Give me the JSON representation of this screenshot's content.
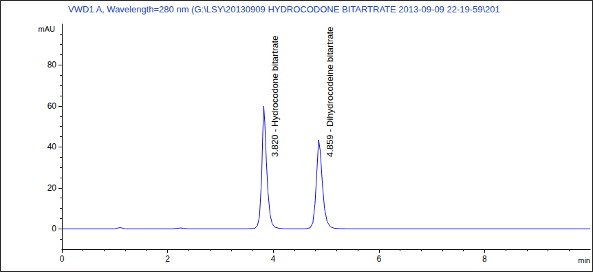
{
  "chart_data": {
    "type": "line",
    "title": "VWD1 A, Wavelength=280 nm (G:\\LSY\\20130909 HYDROCODONE BITARTRATE 2013-09-09 22-19-59\\201",
    "y_label": "mAU",
    "x_label": "min",
    "x": [
      0,
      1.0,
      1.05,
      1.1,
      1.15,
      1.2,
      1.3,
      2.1,
      2.2,
      2.25,
      2.3,
      2.4,
      3.5,
      3.65,
      3.7,
      3.74,
      3.78,
      3.8,
      3.82,
      3.84,
      3.87,
      3.9,
      3.94,
      3.98,
      4.03,
      4.1,
      4.2,
      4.6,
      4.7,
      4.75,
      4.79,
      4.83,
      4.859,
      4.89,
      4.93,
      4.97,
      5.02,
      5.08,
      5.15,
      5.25,
      5.4,
      10
    ],
    "values": [
      0,
      0,
      0.3,
      0.6,
      0.3,
      0,
      0,
      0,
      0.3,
      0.4,
      0.2,
      0,
      0,
      0.2,
      1.5,
      6,
      25,
      45,
      60,
      52,
      33,
      18,
      7,
      2.5,
      0.8,
      0.3,
      0,
      0,
      0.5,
      3,
      12,
      30,
      43.5,
      38,
      22,
      10,
      3.5,
      1,
      0.3,
      0.1,
      0,
      0
    ],
    "color": "#0000ff",
    "xlim": [
      0,
      10
    ],
    "xticks": [
      0,
      2,
      4,
      6,
      8
    ],
    "ylim": [
      -10,
      100
    ],
    "yticks": [
      0,
      20,
      40,
      60,
      80
    ],
    "grid": false,
    "annotations": [
      {
        "x": 3.82,
        "text": "3.820 - Hydrocodone bitartrate"
      },
      {
        "x": 4.859,
        "text": "4.859 - Dihydrocodeine bitartrate"
      }
    ]
  }
}
